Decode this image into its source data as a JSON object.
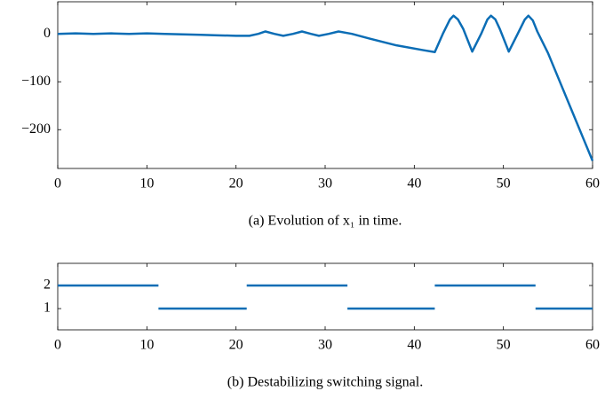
{
  "chart_data": [
    {
      "type": "line",
      "caption": "(a) Evolution of x₁ in time.",
      "series": [
        {
          "name": "x1",
          "color": "#0b6db5",
          "x": [
            0,
            2,
            4,
            6,
            8,
            10,
            12,
            14,
            16,
            18,
            20,
            21.5,
            22.5,
            23.3,
            24.3,
            25.3,
            26.4,
            27.4,
            28.4,
            29.3,
            30.4,
            31.5,
            33,
            35,
            38,
            41,
            42.3,
            43.2,
            44,
            44.4,
            44.9,
            45.5,
            46.5,
            47.5,
            48.2,
            48.6,
            49.1,
            49.6,
            50.6,
            51.6,
            52.4,
            52.8,
            53.3,
            53.8,
            55,
            57,
            59,
            60
          ],
          "values": [
            0,
            1,
            0,
            1,
            0,
            1,
            0,
            -1,
            -2,
            -3,
            -4,
            -4,
            0,
            5,
            0,
            -4,
            0,
            5,
            0,
            -4,
            0,
            5,
            0,
            -10,
            -24,
            -34,
            -38,
            0,
            30,
            38,
            30,
            10,
            -37,
            0,
            30,
            38,
            30,
            10,
            -37,
            0,
            30,
            38,
            28,
            5,
            -40,
            -130,
            -220,
            -265
          ]
        }
      ],
      "xlim": [
        0,
        60
      ],
      "xticks": [
        0,
        10,
        20,
        30,
        40,
        50,
        60
      ],
      "ylim": [
        -281,
        67
      ],
      "yticks": [
        {
          "value": -200,
          "label": "−200"
        },
        {
          "value": -100,
          "label": "−100"
        },
        0
      ]
    },
    {
      "type": "step",
      "caption": "(b) Destabilizing switching signal.",
      "color": "#0b6db5",
      "segments": [
        {
          "start": 0,
          "end": 11.3,
          "value": 2
        },
        {
          "start": 11.3,
          "end": 21.2,
          "value": 1
        },
        {
          "start": 21.2,
          "end": 32.5,
          "value": 2
        },
        {
          "start": 32.5,
          "end": 42.3,
          "value": 1
        },
        {
          "start": 42.3,
          "end": 53.6,
          "value": 2
        },
        {
          "start": 53.6,
          "end": 60,
          "value": 1
        }
      ],
      "xlim": [
        0,
        60
      ],
      "xticks": [
        0,
        10,
        20,
        30,
        40,
        50,
        60
      ],
      "ylim": [
        0.08,
        2.96
      ],
      "yticks": [
        1,
        2
      ]
    }
  ]
}
